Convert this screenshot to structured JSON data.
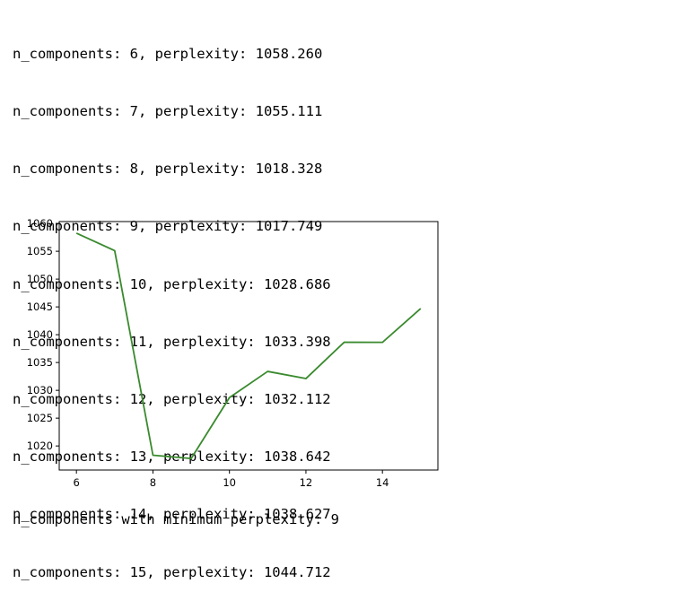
{
  "log_lines": [
    {
      "n": 6,
      "text": "n_components: 6, perplexity: 1058.260"
    },
    {
      "n": 7,
      "text": "n_components: 7, perplexity: 1055.111"
    },
    {
      "n": 8,
      "text": "n_components: 8, perplexity: 1018.328"
    },
    {
      "n": 9,
      "text": "n_components: 9, perplexity: 1017.749"
    },
    {
      "n": 10,
      "text": "n_components: 10, perplexity: 1028.686"
    },
    {
      "n": 11,
      "text": "n_components: 11, perplexity: 1033.398"
    },
    {
      "n": 12,
      "text": "n_components: 12, perplexity: 1032.112"
    },
    {
      "n": 13,
      "text": "n_components: 13, perplexity: 1038.642"
    },
    {
      "n": 14,
      "text": "n_components: 14, perplexity: 1038.627"
    },
    {
      "n": 15,
      "text": "n_components: 15, perplexity: 1044.712"
    }
  ],
  "summary_line": "n_components with minimum perplexity: 9",
  "chart_data": {
    "type": "line",
    "title": "",
    "xlabel": "",
    "ylabel": "",
    "x": [
      6,
      7,
      8,
      9,
      10,
      11,
      12,
      13,
      14,
      15
    ],
    "series": [
      {
        "values": [
          1058.26,
          1055.111,
          1018.328,
          1017.749,
          1028.686,
          1033.398,
          1032.112,
          1038.642,
          1038.627,
          1044.712
        ],
        "color": "#3a8a2e"
      }
    ],
    "xticks": [
      6,
      8,
      10,
      12,
      14
    ],
    "yticks": [
      1020,
      1025,
      1030,
      1035,
      1040,
      1045,
      1050,
      1055,
      1060
    ],
    "xlim": [
      5.55,
      15.45
    ],
    "ylim": [
      1015.67,
      1060.34
    ],
    "grid": false
  }
}
